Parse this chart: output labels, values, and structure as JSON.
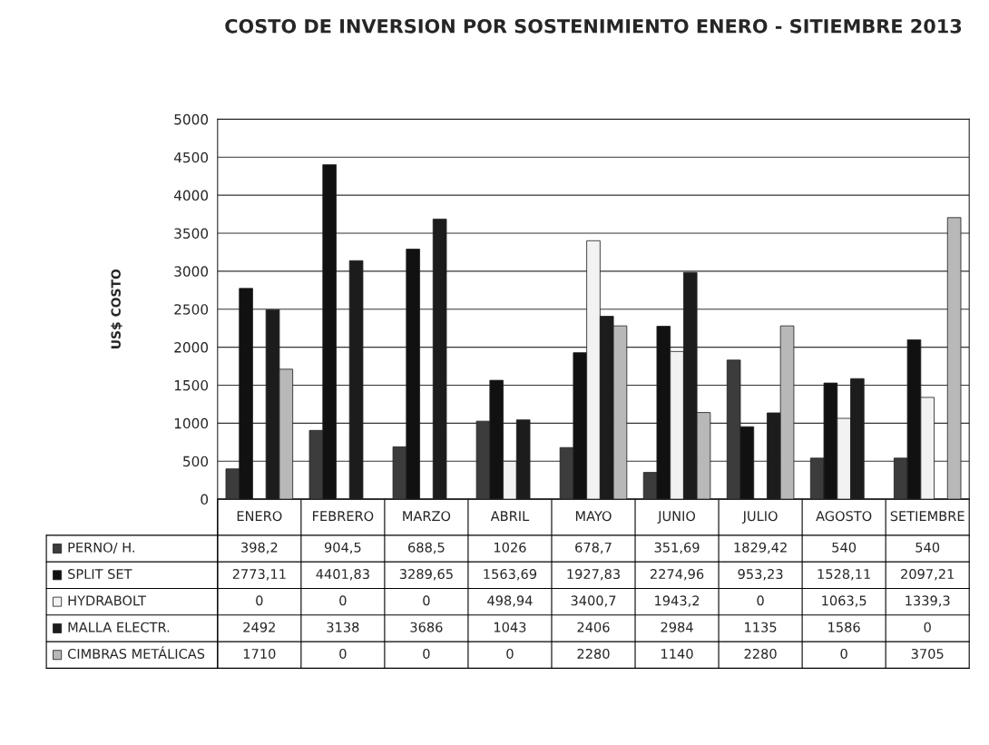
{
  "chart_data": {
    "type": "bar",
    "title": "COSTO DE INVERSION POR SOSTENIMIENTO ENERO - SITIEMBRE 2013",
    "ylabel": "US$ COSTO",
    "categories": [
      "ENERO",
      "FEBRERO",
      "MARZO",
      "ABRIL",
      "MAYO",
      "JUNIO",
      "JULIO",
      "AGOSTO",
      "SETIEMBRE"
    ],
    "series": [
      {
        "name": "PERNO/ H.",
        "color": "#3c3c3c",
        "values": [
          398.2,
          904.5,
          688.5,
          1026,
          678.7,
          351.69,
          1829.42,
          540,
          540
        ],
        "value_labels": [
          "398,2",
          "904,5",
          "688,5",
          "1026",
          "678,7",
          "351,69",
          "1829,42",
          "540",
          "540"
        ]
      },
      {
        "name": "SPLIT SET",
        "color": "#111111",
        "values": [
          2773.11,
          4401.83,
          3289.65,
          1563.69,
          1927.83,
          2274.96,
          953.23,
          1528.11,
          2097.21
        ],
        "value_labels": [
          "2773,11",
          "4401,83",
          "3289,65",
          "1563,69",
          "1927,83",
          "2274,96",
          "953,23",
          "1528,11",
          "2097,21"
        ]
      },
      {
        "name": "HYDRABOLT",
        "color": "#f2f2f2",
        "values": [
          0,
          0,
          0,
          498.94,
          3400.7,
          1943.2,
          0,
          1063.5,
          1339.3
        ],
        "value_labels": [
          "0",
          "0",
          "0",
          "498,94",
          "3400,7",
          "1943,2",
          "0",
          "1063,5",
          "1339,3"
        ]
      },
      {
        "name": "MALLA ELECTR.",
        "color": "#1c1c1c",
        "values": [
          2492,
          3138,
          3686,
          1043,
          2406,
          2984,
          1135,
          1586,
          0
        ],
        "value_labels": [
          "2492",
          "3138",
          "3686",
          "1043",
          "2406",
          "2984",
          "1135",
          "1586",
          "0"
        ]
      },
      {
        "name": "CIMBRAS METÁLICAS",
        "color": "#b8b8b8",
        "values": [
          1710,
          0,
          0,
          0,
          2280,
          1140,
          2280,
          0,
          3705
        ],
        "value_labels": [
          "1710",
          "0",
          "0",
          "0",
          "2280",
          "1140",
          "2280",
          "0",
          "3705"
        ]
      }
    ],
    "ylim": [
      0,
      5000
    ],
    "yticks": [
      0,
      500,
      1000,
      1500,
      2000,
      2500,
      3000,
      3500,
      4000,
      4500,
      5000
    ],
    "grid": "y",
    "legend": "bottom"
  }
}
